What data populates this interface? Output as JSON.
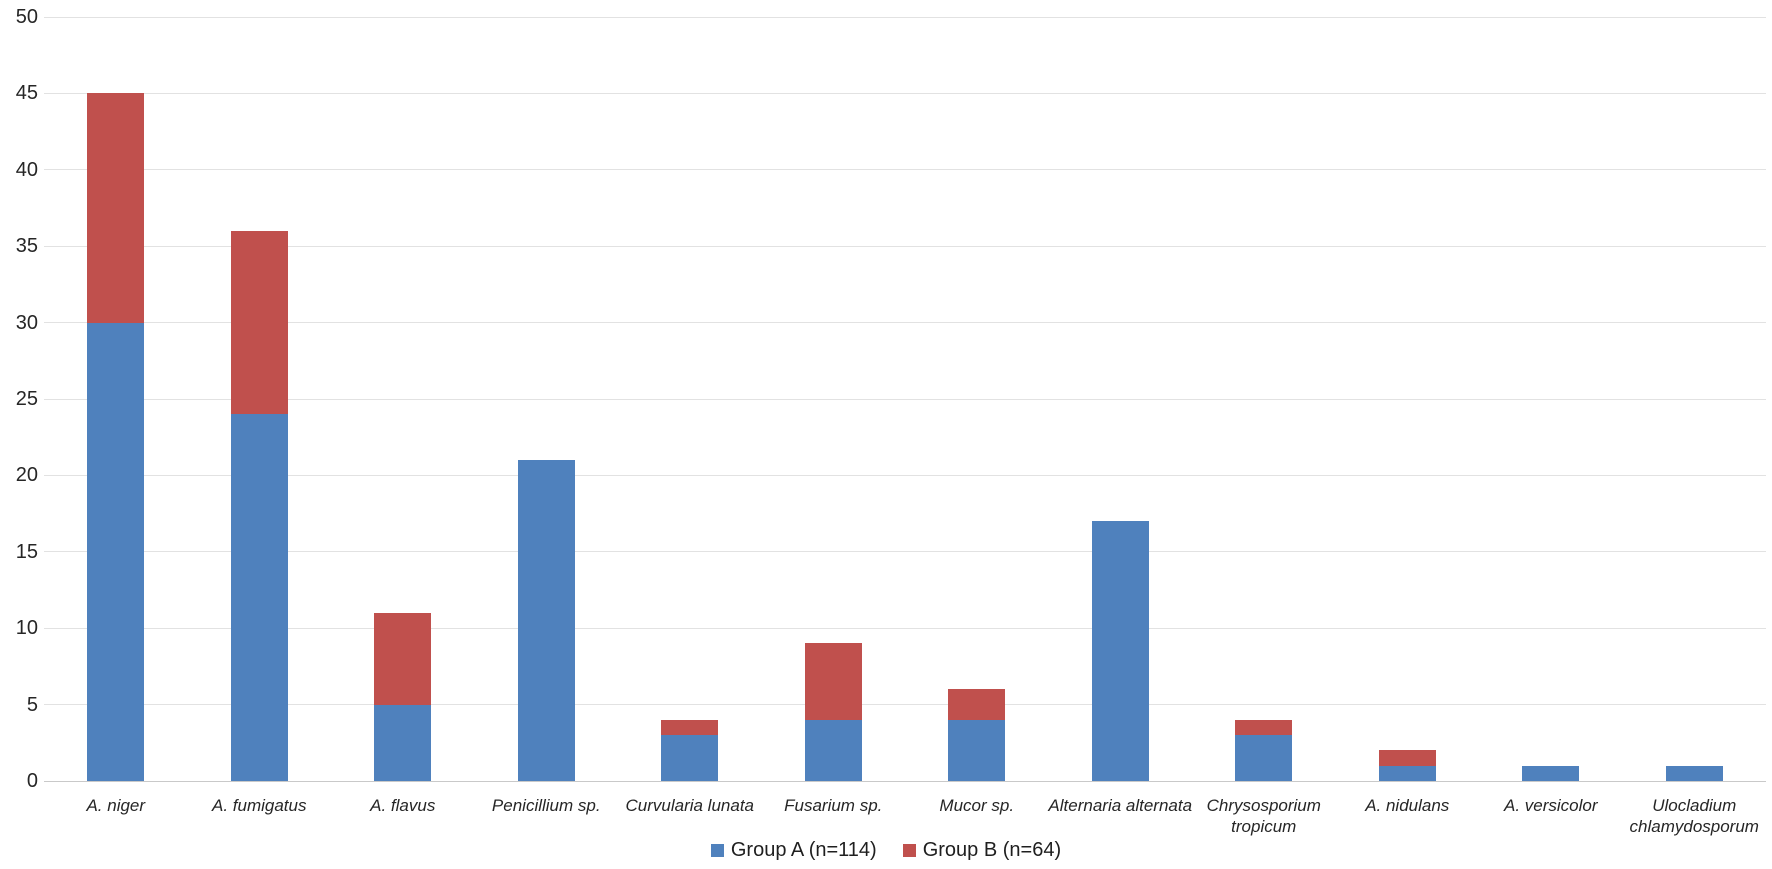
{
  "chart_data": {
    "type": "bar",
    "stacked": true,
    "title": "",
    "xlabel": "",
    "ylabel": "",
    "categories": [
      "A. niger",
      "A. fumigatus",
      "A. flavus",
      "Penicillium sp.",
      "Curvularia lunata",
      "Fusarium sp.",
      "Mucor sp.",
      "Alternaria alternata",
      "Chrysosporium\ntropicum",
      "A. nidulans",
      "A. versicolor",
      "Ulocladium\nchlamydosporum"
    ],
    "series": [
      {
        "name": "Group A (n=114)",
        "color": "#4F81BD",
        "values": [
          30,
          24,
          5,
          21,
          3,
          4,
          4,
          17,
          3,
          1,
          1,
          1
        ]
      },
      {
        "name": "Group B (n=64)",
        "color": "#C0504D",
        "values": [
          15,
          12,
          6,
          0,
          1,
          5,
          2,
          0,
          1,
          1,
          0,
          0
        ]
      }
    ],
    "ylim": [
      0,
      50
    ],
    "ytick_step": 5,
    "yticks": [
      "0",
      "5",
      "10",
      "15",
      "20",
      "25",
      "30",
      "35",
      "40",
      "45",
      "50"
    ],
    "grid": true,
    "legend_position": "bottom",
    "category_font_style": "italic"
  },
  "colors": {
    "background": "#ffffff",
    "gridline": "#e2e2e2",
    "axis_line": "#c9c9c9",
    "text": "#262626"
  }
}
